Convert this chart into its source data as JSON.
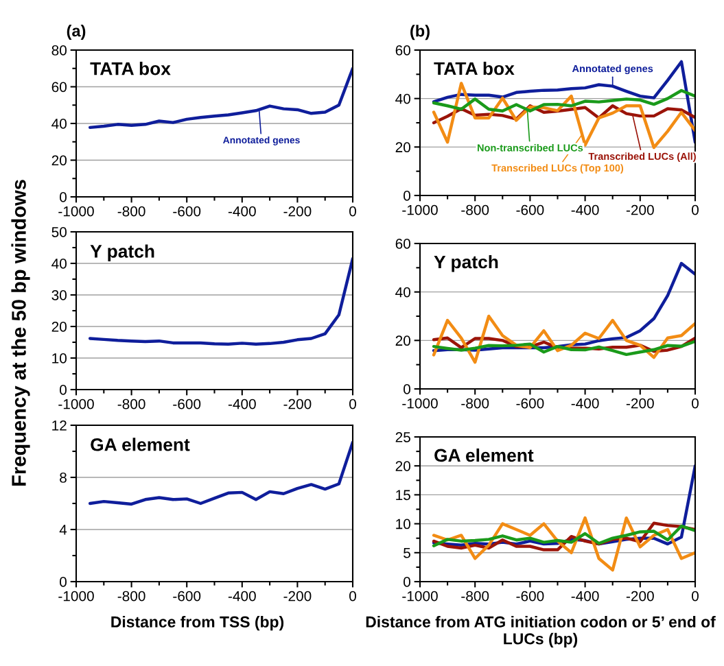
{
  "chart_data": [
    {
      "type": "line",
      "title": "TATA box",
      "annotations": [
        "(a)"
      ],
      "ylabel": "Frequency at the 50 bp windows",
      "grid": "y",
      "xlim": [
        -1000,
        0
      ],
      "xticks": [
        -1000,
        -800,
        -600,
        -400,
        -200,
        0
      ],
      "ylim": [
        0,
        80
      ],
      "yticks": [
        0,
        20,
        40,
        60,
        80
      ],
      "x": [
        -950,
        -900,
        -850,
        -800,
        -750,
        -700,
        -650,
        -600,
        -550,
        -500,
        -450,
        -400,
        -350,
        -300,
        -250,
        -200,
        -150,
        -100,
        -50,
        0
      ],
      "series": [
        {
          "name": "Annotated genes",
          "color": "#0f1e9b",
          "values": [
            37.8,
            38.5,
            39.5,
            39,
            39.5,
            41.3,
            40.5,
            42.3,
            43.3,
            44,
            44.7,
            45.8,
            47,
            49.5,
            48,
            47.5,
            45.5,
            46.2,
            50,
            70
          ]
        }
      ]
    },
    {
      "type": "line",
      "title": "TATA box",
      "annotations": [
        "(b)"
      ],
      "grid": "y",
      "xlim": [
        -1000,
        0
      ],
      "xticks": [
        -1000,
        -800,
        -600,
        -400,
        -200,
        0
      ],
      "ylim": [
        0,
        60
      ],
      "yticks": [
        0,
        20,
        40,
        60
      ],
      "x": [
        -950,
        -900,
        -850,
        -800,
        -750,
        -700,
        -650,
        -600,
        -550,
        -500,
        -450,
        -400,
        -350,
        -300,
        -250,
        -200,
        -150,
        -100,
        -50,
        0
      ],
      "series": [
        {
          "name": "Annotated genes",
          "color": "#0f1e9b",
          "values": [
            38.7,
            40.5,
            41.7,
            41.4,
            41.4,
            40.6,
            42.5,
            43,
            43.4,
            43.5,
            44.1,
            44.4,
            45.7,
            45.1,
            43,
            41,
            40.3,
            47.5,
            55.2,
            22
          ]
        },
        {
          "name": "Transcribed LUCs (All)",
          "color": "#9b1409",
          "values": [
            30,
            32.7,
            35.8,
            33.1,
            33.5,
            33,
            31.5,
            37,
            34.3,
            34.8,
            35.5,
            36.3,
            32,
            37,
            33.8,
            32.8,
            32.8,
            35.8,
            35.3,
            32.2
          ]
        },
        {
          "name": "Transcribed LUCs (Top 100)",
          "color": "#f28c14",
          "values": [
            34.4,
            22,
            46.3,
            32,
            32,
            40.2,
            31,
            36.5,
            36.2,
            35,
            41,
            20.8,
            32,
            34,
            37,
            37,
            19.8,
            26.5,
            34.3,
            26.8
          ]
        },
        {
          "name": "Non-transcribed LUCs",
          "color": "#1a9a1a",
          "values": [
            38.2,
            37,
            35.6,
            39.8,
            35.6,
            34.9,
            37.5,
            34.9,
            37.5,
            37.6,
            37,
            38.9,
            38.6,
            39.2,
            39.8,
            39.4,
            37.6,
            40,
            43.3,
            41
          ]
        }
      ]
    },
    {
      "type": "line",
      "title": "Y patch",
      "grid": "y",
      "xlim": [
        -1000,
        0
      ],
      "xticks": [
        -1000,
        -800,
        -600,
        -400,
        -200,
        0
      ],
      "ylim": [
        0,
        50
      ],
      "yticks": [
        0,
        10,
        20,
        30,
        40,
        50
      ],
      "x": [
        -950,
        -900,
        -850,
        -800,
        -750,
        -700,
        -650,
        -600,
        -550,
        -500,
        -450,
        -400,
        -350,
        -300,
        -250,
        -200,
        -150,
        -100,
        -50,
        0
      ],
      "series": [
        {
          "color": "#0f1e9b",
          "values": [
            16.2,
            15.9,
            15.6,
            15.4,
            15.2,
            15.4,
            14.8,
            14.8,
            14.8,
            14.5,
            14.4,
            14.7,
            14.4,
            14.6,
            15,
            15.8,
            16.2,
            17.7,
            23.7,
            41.5
          ]
        }
      ]
    },
    {
      "type": "line",
      "title": "Y patch",
      "grid": "y",
      "xlim": [
        -1000,
        0
      ],
      "xticks": [
        -1000,
        -800,
        -600,
        -400,
        -200,
        0
      ],
      "ylim": [
        0,
        60
      ],
      "yticks": [
        0,
        20,
        40,
        60
      ],
      "x": [
        -950,
        -900,
        -850,
        -800,
        -750,
        -700,
        -650,
        -600,
        -550,
        -500,
        -450,
        -400,
        -350,
        -300,
        -250,
        -200,
        -150,
        -100,
        -50,
        0
      ],
      "series": [
        {
          "color": "#0f1e9b",
          "values": [
            15.8,
            16.2,
            16.2,
            16,
            16.5,
            17,
            17,
            17,
            17,
            17.5,
            18.2,
            18.5,
            19.9,
            20.7,
            21.2,
            24,
            29,
            38.5,
            51.8,
            47.3
          ]
        },
        {
          "color": "#9b1409",
          "values": [
            20.3,
            21,
            17,
            20.8,
            20.8,
            20,
            17.5,
            17.3,
            19.3,
            17,
            16.8,
            16.8,
            16.5,
            17.2,
            17.2,
            18,
            15.5,
            16,
            17.5,
            21
          ]
        },
        {
          "color": "#f28c14",
          "values": [
            14,
            28.3,
            21,
            11,
            30,
            22,
            18,
            17,
            24,
            15.8,
            18,
            23,
            20.8,
            28.3,
            20,
            18,
            13,
            21,
            22,
            27
          ]
        },
        {
          "color": "#1a9a1a",
          "values": [
            17.5,
            16.7,
            16,
            16.8,
            17.9,
            17.8,
            18,
            18.5,
            15.2,
            17.5,
            16.2,
            16.1,
            17.3,
            15.8,
            14.2,
            15.2,
            16.2,
            17.9,
            17.6,
            19.6
          ]
        }
      ]
    },
    {
      "type": "line",
      "title": "GA element",
      "xlabel": "Distance from TSS (bp)",
      "grid": "y",
      "xlim": [
        -1000,
        0
      ],
      "xticks": [
        -1000,
        -800,
        -600,
        -400,
        -200,
        0
      ],
      "ylim": [
        0,
        12
      ],
      "yticks": [
        0,
        4,
        8,
        12
      ],
      "x": [
        -950,
        -900,
        -850,
        -800,
        -750,
        -700,
        -650,
        -600,
        -550,
        -500,
        -450,
        -400,
        -350,
        -300,
        -250,
        -200,
        -150,
        -100,
        -50,
        0
      ],
      "series": [
        {
          "color": "#0f1e9b",
          "values": [
            6.0,
            6.15,
            6.05,
            5.95,
            6.3,
            6.45,
            6.3,
            6.35,
            6.0,
            6.4,
            6.8,
            6.85,
            6.3,
            6.9,
            6.75,
            7.15,
            7.45,
            7.1,
            7.5,
            10.7
          ]
        }
      ]
    },
    {
      "type": "line",
      "title": "GA element",
      "xlabel": "Distance from ATG initiation codon or 5’ end of LUCs (bp)",
      "grid": "y",
      "xlim": [
        -1000,
        0
      ],
      "xticks": [
        -1000,
        -800,
        -600,
        -400,
        -200,
        0
      ],
      "ylim": [
        0,
        25
      ],
      "yticks": [
        0,
        5,
        10,
        15,
        20,
        25
      ],
      "x": [
        -950,
        -900,
        -850,
        -800,
        -750,
        -700,
        -650,
        -600,
        -550,
        -500,
        -450,
        -400,
        -350,
        -300,
        -250,
        -200,
        -150,
        -100,
        -50,
        0
      ],
      "series": [
        {
          "color": "#0f1e9b",
          "values": [
            6.7,
            6.5,
            6.3,
            6.6,
            6.5,
            6.8,
            6.5,
            7,
            6.5,
            6.6,
            7.3,
            7.1,
            6.5,
            6.9,
            7.3,
            7.5,
            7.5,
            6.5,
            7.7,
            20
          ]
        },
        {
          "color": "#9b1409",
          "values": [
            7,
            6.1,
            5.8,
            6.3,
            5.8,
            7.2,
            6.1,
            6.1,
            5.5,
            5.5,
            7.8,
            7,
            6.5,
            7.3,
            7.5,
            6.9,
            10.1,
            9.7,
            9.5,
            9
          ]
        },
        {
          "color": "#f28c14",
          "values": [
            8,
            7.2,
            8,
            4,
            6.3,
            10,
            9,
            8,
            10,
            7,
            5,
            11,
            4,
            2,
            11,
            6,
            8,
            9,
            4,
            5
          ]
        },
        {
          "color": "#1a9a1a",
          "values": [
            6.2,
            7.3,
            7,
            7.1,
            7.3,
            7.9,
            7.2,
            7.5,
            6.8,
            7.1,
            6.8,
            8.3,
            6.6,
            7.5,
            8,
            8.6,
            8.7,
            7.2,
            9.6,
            8.8
          ]
        }
      ]
    }
  ]
}
